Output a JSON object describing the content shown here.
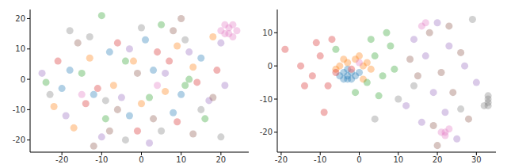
{
  "chart_data": [
    {
      "type": "scatter",
      "xlim": [
        -28,
        27
      ],
      "ylim": [
        -24,
        23
      ],
      "xticks": [
        -20,
        -10,
        0,
        10,
        20
      ],
      "yticks": [
        -20,
        -10,
        0,
        10,
        20
      ],
      "series": [
        {
          "color": "#1f77b4",
          "x": [
            -20,
            -12,
            -8,
            -3,
            3,
            8,
            15,
            -18,
            1,
            10
          ],
          "y": [
            -3,
            -5,
            9,
            -12,
            3,
            -11,
            7,
            3,
            13,
            -5
          ]
        },
        {
          "color": "#ff7f0e",
          "x": [
            -22,
            -17,
            -13,
            -7,
            0,
            6,
            9,
            13,
            -2,
            18
          ],
          "y": [
            -9,
            -16,
            7,
            -2,
            -8,
            -4,
            11,
            4,
            6,
            14
          ]
        },
        {
          "color": "#2ca02c",
          "x": [
            -24,
            -15,
            -9,
            -4,
            2,
            5,
            11,
            16,
            -10,
            12
          ],
          "y": [
            -1,
            2,
            -13,
            6,
            -6,
            18,
            -2,
            -13,
            21,
            0
          ]
        },
        {
          "color": "#d62728",
          "x": [
            -21,
            -14,
            -6,
            -1,
            4,
            9,
            14,
            19,
            -11,
            7
          ],
          "y": [
            6,
            -8,
            12,
            -17,
            9,
            -14,
            -1,
            3,
            -3,
            6
          ]
        },
        {
          "color": "#9467bd",
          "x": [
            -25,
            -19,
            -10,
            -5,
            2,
            6,
            12,
            17,
            21,
            -3,
            20
          ],
          "y": [
            2,
            -12,
            -19,
            -6,
            -21,
            2,
            9,
            -7,
            -2,
            10,
            12
          ]
        },
        {
          "color": "#8c564b",
          "x": [
            -16,
            -12,
            -6,
            -1,
            3,
            8,
            13,
            18,
            -8,
            10
          ],
          "y": [
            12,
            -22,
            -10,
            2,
            -13,
            16,
            -18,
            -6,
            -17,
            20
          ]
        },
        {
          "color": "#e377c2",
          "x": [
            20,
            21,
            22,
            23,
            22,
            24,
            23,
            21,
            -15,
            4
          ],
          "y": [
            16,
            18,
            17,
            18,
            15,
            16,
            14,
            15,
            -5,
            -2
          ]
        },
        {
          "color": "#7f7f7f",
          "x": [
            -23,
            -18,
            -9,
            -4,
            0,
            5,
            11,
            15,
            20,
            -13
          ],
          "y": [
            -5,
            16,
            -7,
            -20,
            17,
            -17,
            13,
            -10,
            -19,
            14
          ]
        }
      ]
    },
    {
      "type": "scatter",
      "xlim": [
        -21,
        35
      ],
      "ylim": [
        -26,
        17
      ],
      "xticks": [
        -20,
        -10,
        0,
        10,
        20,
        30
      ],
      "yticks": [
        -20,
        -10,
        0,
        10
      ],
      "series": [
        {
          "color": "#1f77b4",
          "x": [
            -3,
            -4,
            -2,
            -3,
            -5,
            -2,
            -3,
            -1,
            -4,
            0
          ],
          "y": [
            -3,
            -2,
            -4,
            -1,
            -3,
            -2,
            -4,
            -3,
            -4,
            -2
          ]
        },
        {
          "color": "#ff7f0e",
          "x": [
            -5,
            -3,
            -1,
            1,
            2,
            -2,
            -6,
            0,
            3,
            -4,
            1
          ],
          "y": [
            0,
            1,
            2,
            0,
            1,
            -1,
            -1,
            3,
            -1,
            2,
            -4
          ]
        },
        {
          "color": "#2ca02c",
          "x": [
            -1,
            2,
            4,
            6,
            8,
            5,
            3,
            9,
            7,
            -6
          ],
          "y": [
            -8,
            -5,
            3,
            -3,
            6,
            -9,
            8,
            -1,
            10,
            5
          ]
        },
        {
          "color": "#d62728",
          "x": [
            -19,
            -15,
            -12,
            -10,
            -8,
            -7,
            -14,
            -9,
            -6,
            -11
          ],
          "y": [
            5,
            0,
            -3,
            3,
            -6,
            8,
            -6,
            -14,
            -2,
            7
          ]
        },
        {
          "color": "#9467bd",
          "x": [
            14,
            17,
            19,
            22,
            25,
            27,
            20,
            30,
            16,
            23,
            12
          ],
          "y": [
            8,
            3,
            -8,
            -14,
            -22,
            0,
            13,
            -5,
            -17,
            6,
            -12
          ]
        },
        {
          "color": "#8c564b",
          "x": [
            15,
            18,
            21,
            24,
            26,
            20,
            28,
            13,
            23,
            19
          ],
          "y": [
            -3,
            10,
            -2,
            -8,
            4,
            -24,
            -16,
            2,
            12,
            -18
          ]
        },
        {
          "color": "#e377c2",
          "x": [
            21,
            22,
            23,
            22,
            16,
            17,
            -2,
            0
          ],
          "y": [
            -20,
            -21,
            -19,
            -20,
            12,
            13,
            -1,
            1
          ]
        },
        {
          "color": "#7f7f7f",
          "x": [
            33,
            33,
            33,
            32,
            33,
            10,
            26,
            14,
            29,
            4
          ],
          "y": [
            -9,
            -10,
            -11,
            -12,
            -12,
            -10,
            -13,
            -6,
            14,
            -16
          ]
        }
      ]
    }
  ]
}
